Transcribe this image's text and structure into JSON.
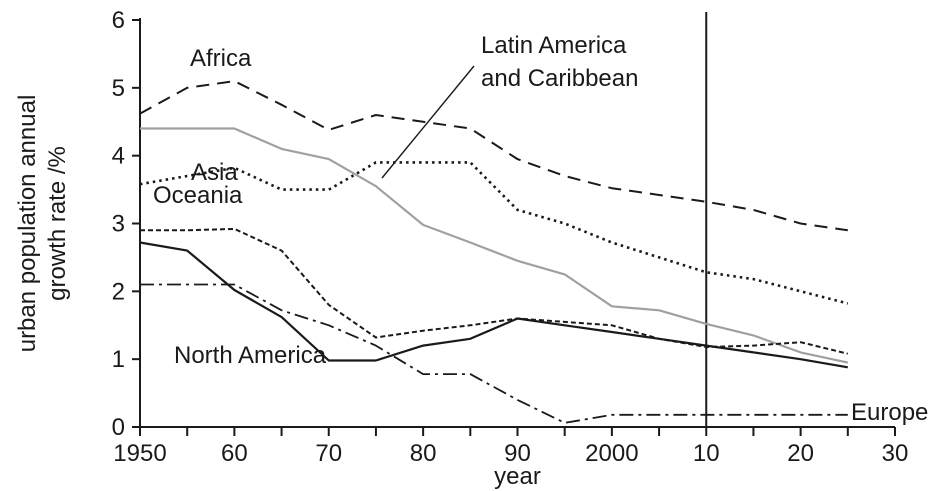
{
  "chart_data": {
    "type": "line",
    "xlabel": "year",
    "ylabel": [
      "urban population annual",
      "growth rate /%"
    ],
    "xlim": [
      1950,
      2030
    ],
    "ylim": [
      0,
      6
    ],
    "x_ticks": [
      1950,
      1955,
      1960,
      1965,
      1970,
      1975,
      1980,
      1985,
      1990,
      1995,
      2000,
      2005,
      2010,
      2015,
      2020,
      2025,
      2030
    ],
    "x_tick_labels": [
      {
        "value": 1950,
        "label": "1950"
      },
      {
        "value": 1960,
        "label": "60"
      },
      {
        "value": 1970,
        "label": "70"
      },
      {
        "value": 1980,
        "label": "80"
      },
      {
        "value": 1990,
        "label": "90"
      },
      {
        "value": 2000,
        "label": "2000"
      },
      {
        "value": 2010,
        "label": "10"
      },
      {
        "value": 2020,
        "label": "20"
      },
      {
        "value": 2030,
        "label": "30"
      }
    ],
    "y_ticks": [
      0,
      1,
      2,
      3,
      4,
      5,
      6
    ],
    "reference_line_x": 2010,
    "grid": false,
    "colors": {
      "dark": "#1a1a1a",
      "gray": "#a0a0a0"
    },
    "series": [
      {
        "name": "Africa",
        "style": "dashed",
        "x": [
          1950,
          1955,
          1960,
          1965,
          1970,
          1975,
          1980,
          1985,
          1990,
          1995,
          2000,
          2005,
          2010,
          2015,
          2020,
          2025
        ],
        "values": [
          4.62,
          5.0,
          5.1,
          4.75,
          4.38,
          4.6,
          4.5,
          4.4,
          3.95,
          3.7,
          3.52,
          3.42,
          3.32,
          3.2,
          3.0,
          2.9
        ]
      },
      {
        "name": "Latin America\nand Caribbean",
        "style": "solid-gray",
        "x": [
          1950,
          1955,
          1960,
          1965,
          1970,
          1975,
          1980,
          1985,
          1990,
          1995,
          2000,
          2005,
          2010,
          2015,
          2020,
          2025
        ],
        "values": [
          4.4,
          4.4,
          4.4,
          4.1,
          3.95,
          3.55,
          2.98,
          2.72,
          2.45,
          2.25,
          1.78,
          1.72,
          1.52,
          1.35,
          1.1,
          0.95
        ]
      },
      {
        "name": "Asia",
        "style": "dotted",
        "x": [
          1950,
          1955,
          1960,
          1965,
          1970,
          1975,
          1980,
          1985,
          1990,
          1995,
          2000,
          2005,
          2010,
          2015,
          2020,
          2025
        ],
        "values": [
          3.58,
          3.7,
          3.82,
          3.5,
          3.5,
          3.9,
          3.9,
          3.9,
          3.2,
          3.0,
          2.72,
          2.5,
          2.28,
          2.18,
          2.0,
          1.82
        ]
      },
      {
        "name": "Oceania",
        "style": "short-dash",
        "x": [
          1950,
          1955,
          1960,
          1965,
          1970,
          1975,
          1980,
          1985,
          1990,
          1995,
          2000,
          2005,
          2010,
          2015,
          2020,
          2025
        ],
        "values": [
          2.9,
          2.9,
          2.92,
          2.6,
          1.8,
          1.32,
          1.42,
          1.5,
          1.6,
          1.55,
          1.5,
          1.3,
          1.18,
          1.2,
          1.25,
          1.08
        ]
      },
      {
        "name": "North America",
        "style": "solid",
        "x": [
          1950,
          1955,
          1960,
          1965,
          1970,
          1975,
          1980,
          1985,
          1990,
          1995,
          2000,
          2005,
          2010,
          2015,
          2020,
          2025
        ],
        "values": [
          2.72,
          2.6,
          2.02,
          1.62,
          0.98,
          0.98,
          1.2,
          1.3,
          1.6,
          1.5,
          1.4,
          1.3,
          1.2,
          1.1,
          1.0,
          0.88
        ]
      },
      {
        "name": "Europe",
        "style": "dash-dot",
        "x": [
          1950,
          1955,
          1960,
          1965,
          1970,
          1975,
          1980,
          1985,
          1990,
          1995,
          2000,
          2005,
          2010,
          2015,
          2020,
          2025
        ],
        "values": [
          2.1,
          2.1,
          2.1,
          1.72,
          1.5,
          1.2,
          0.78,
          0.78,
          0.4,
          0.06,
          0.18,
          0.18,
          0.18,
          0.18,
          0.18,
          0.18
        ]
      }
    ],
    "annotations": [
      {
        "series": "Africa",
        "text": "Africa"
      },
      {
        "series": "Latin America\nand Caribbean",
        "text": "Latin America"
      },
      {
        "series": "Latin America\nand Caribbean",
        "text": "and Caribbean"
      },
      {
        "series": "Asia",
        "text": "Asia"
      },
      {
        "series": "Oceania",
        "text": "Oceania"
      },
      {
        "series": "North America",
        "text": "North America"
      },
      {
        "series": "Europe",
        "text": "Europe"
      }
    ]
  }
}
